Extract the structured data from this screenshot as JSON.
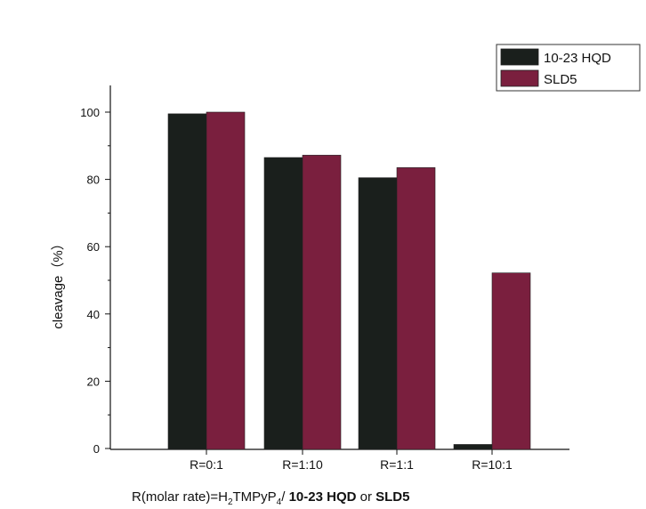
{
  "chart_data": {
    "type": "bar",
    "categories": [
      "R=0:1",
      "R=1:10",
      "R=1:1",
      "R=10:1"
    ],
    "series": [
      {
        "name": "10-23 HQD",
        "values": [
          99.5,
          86.5,
          80.5,
          1.2
        ],
        "color": "#1a1f1c"
      },
      {
        "name": "SLD5",
        "values": [
          100,
          87.2,
          83.5,
          52.2
        ],
        "color": "#7a1f3e"
      }
    ],
    "ylabel": "cleavage（%）",
    "xlabel": {
      "prefix": "R(molar rate)=H",
      "sub1": "2",
      "mid": "TMPyP",
      "sub2": "4",
      "slash": "/ ",
      "bold1": "10-23 HQD",
      "or": " or ",
      "bold2": "SLD5"
    },
    "ylim": [
      0,
      100
    ],
    "yticks": [
      "0",
      "20",
      "40",
      "60",
      "80",
      "100"
    ],
    "legend_position": "top-right",
    "grid": false
  }
}
